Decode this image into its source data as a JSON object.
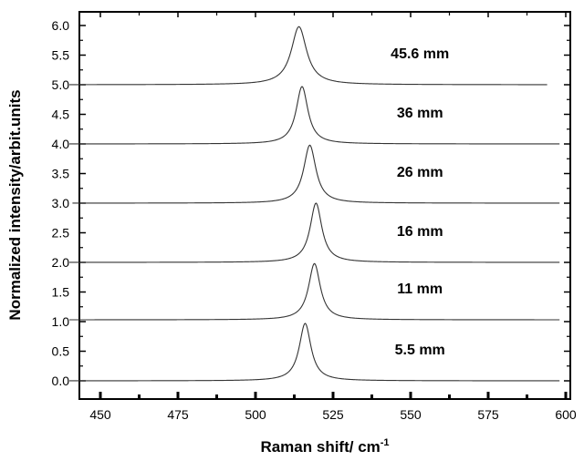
{
  "chart_data": {
    "type": "line",
    "title": "",
    "xlabel": "Raman shift/ cm",
    "xlabel_superscript": "-1",
    "ylabel": "Normalized intensity/arbit.units",
    "xlim": [
      440,
      600
    ],
    "ylim": [
      -0.2,
      6.2
    ],
    "x_ticks": [
      "450",
      "475",
      "500",
      "525",
      "550",
      "575",
      "600"
    ],
    "y_ticks": [
      "0.0",
      "0.5",
      "1.0",
      "1.5",
      "2.0",
      "2.5",
      "3.0",
      "3.5",
      "4.0",
      "4.5",
      "5.0",
      "5.5",
      "6.0"
    ],
    "grid": false,
    "legend": "none",
    "line_color": "#333333",
    "series": [
      {
        "label": "5.5 mm",
        "baseline": 0.0,
        "peak_x": 516.0,
        "peak_height": 0.97,
        "width": 2.3,
        "x_start": 440,
        "x_end": 598
      },
      {
        "label": "11 mm",
        "baseline": 1.03,
        "peak_x": 519.0,
        "peak_height": 0.95,
        "width": 2.3,
        "x_start": 440,
        "x_end": 598
      },
      {
        "label": "16 mm",
        "baseline": 2.0,
        "peak_x": 519.5,
        "peak_height": 1.0,
        "width": 2.3,
        "x_start": 440,
        "x_end": 598
      },
      {
        "label": "26 mm",
        "baseline": 3.0,
        "peak_x": 517.5,
        "peak_height": 0.98,
        "width": 2.4,
        "x_start": 441,
        "x_end": 598
      },
      {
        "label": "36 mm",
        "baseline": 4.0,
        "peak_x": 515.0,
        "peak_height": 0.97,
        "width": 2.3,
        "x_start": 440,
        "x_end": 598
      },
      {
        "label": "45.6 mm",
        "baseline": 5.0,
        "peak_x": 514.0,
        "peak_height": 0.98,
        "width": 3.0,
        "x_start": 440,
        "x_end": 594
      }
    ]
  }
}
